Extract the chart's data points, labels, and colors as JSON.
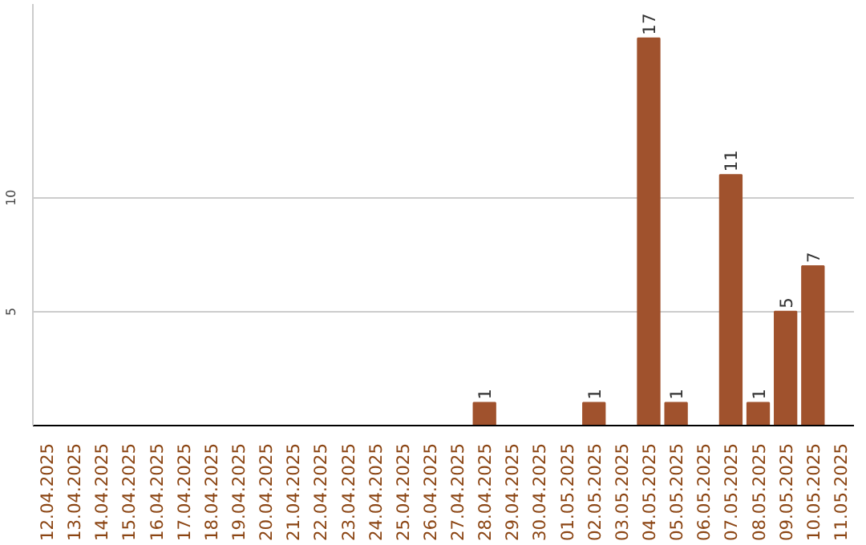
{
  "chart_data": {
    "type": "bar",
    "categories": [
      "12.04.2025",
      "13.04.2025",
      "14.04.2025",
      "15.04.2025",
      "16.04.2025",
      "17.04.2025",
      "18.04.2025",
      "19.04.2025",
      "20.04.2025",
      "21.04.2025",
      "22.04.2025",
      "23.04.2025",
      "24.04.2025",
      "25.04.2025",
      "26.04.2025",
      "27.04.2025",
      "28.04.2025",
      "29.04.2025",
      "30.04.2025",
      "01.05.2025",
      "02.05.2025",
      "03.05.2025",
      "04.05.2025",
      "05.05.2025",
      "06.05.2025",
      "07.05.2025",
      "08.05.2025",
      "09.05.2025",
      "10.05.2025",
      "11.05.2025"
    ],
    "values": [
      0,
      0,
      0,
      0,
      0,
      0,
      0,
      0,
      0,
      0,
      0,
      0,
      0,
      0,
      0,
      0,
      1,
      0,
      0,
      0,
      1,
      0,
      17,
      1,
      0,
      11,
      1,
      5,
      7,
      0
    ],
    "value_labels": [
      null,
      null,
      null,
      null,
      null,
      null,
      null,
      null,
      null,
      null,
      null,
      null,
      null,
      null,
      null,
      null,
      "1",
      null,
      null,
      null,
      "1",
      null,
      "17",
      "1",
      null,
      "11",
      "1",
      "5",
      "7",
      null
    ],
    "color": "#a0522d",
    "ylim": [
      0,
      18.5
    ],
    "yticks": [
      5,
      10
    ],
    "grid": "y"
  }
}
